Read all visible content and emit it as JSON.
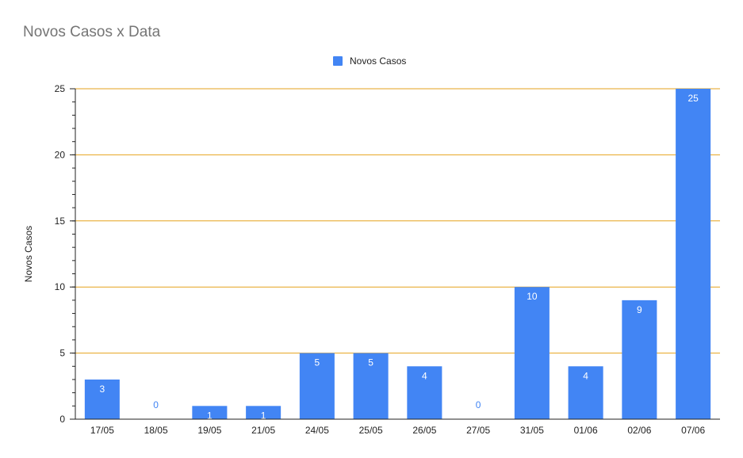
{
  "chart_data": {
    "type": "bar",
    "title": "Novos Casos x Data",
    "xlabel": "",
    "ylabel": "Novos Casos",
    "categories": [
      "17/05",
      "18/05",
      "19/05",
      "21/05",
      "24/05",
      "25/05",
      "26/05",
      "27/05",
      "31/05",
      "01/06",
      "02/06",
      "07/06"
    ],
    "series": [
      {
        "name": "Novos Casos",
        "values": [
          3,
          0,
          1,
          1,
          5,
          5,
          4,
          0,
          10,
          4,
          9,
          25
        ]
      }
    ],
    "ylim": [
      0,
      25
    ],
    "yticks": [
      0,
      5,
      10,
      15,
      20,
      25
    ],
    "grid": true,
    "legend_position": "top-center",
    "data_labels": true
  },
  "colors": {
    "bar": "#4285f4",
    "gridline": "#e6a21c",
    "axis": "#222222",
    "title": "#757575",
    "label_inside": "#ffffff",
    "label_outside": "#4285f4"
  }
}
